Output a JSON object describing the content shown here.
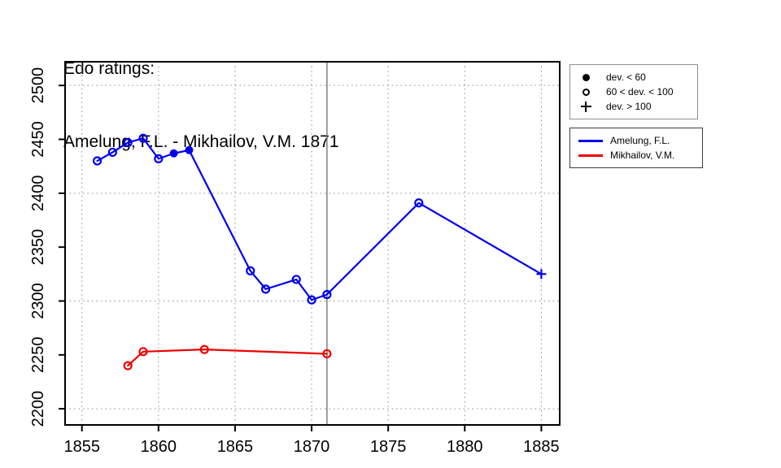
{
  "title": {
    "line1": "Edo ratings:",
    "line2": "Amelung, F.L. - Mikhailov, V.M. 1871"
  },
  "colors": {
    "amelung": "#0000ee",
    "mikhailov": "#ee0000",
    "grid": "#8c8c8c",
    "vline": "#7d7d7d",
    "axis": "#000000",
    "background": "#ffffff"
  },
  "marker_legend": {
    "items": [
      {
        "symbol": "filled-circle",
        "label": "dev. < 60"
      },
      {
        "symbol": "open-circle",
        "label": "60 < dev. < 100"
      },
      {
        "symbol": "plus",
        "label": "dev. > 100"
      }
    ]
  },
  "series_legend": {
    "items": [
      {
        "color": "#0000ee",
        "label": "Amelung, F.L."
      },
      {
        "color": "#ee0000",
        "label": "Mikhailov, V.M."
      }
    ]
  },
  "chart_data": {
    "type": "line",
    "title": "Edo ratings: Amelung, F.L. - Mikhailov, V.M. 1871",
    "xlabel": "",
    "ylabel": "",
    "xlim": [
      1853.9,
      1886.2
    ],
    "ylim": [
      2185,
      2522
    ],
    "x_ticks": [
      1855,
      1860,
      1865,
      1870,
      1875,
      1880,
      1885
    ],
    "y_ticks": [
      2200,
      2250,
      2300,
      2350,
      2400,
      2450,
      2500
    ],
    "grid_h_lines": [
      2200,
      2300,
      2400,
      2500
    ],
    "grid_v_lines": [
      1855,
      1860,
      1865,
      1870,
      1875,
      1880,
      1885
    ],
    "vline_x": 1871,
    "marker_meaning": {
      "filled": "dev. < 60",
      "open": "60 < dev. < 100",
      "plus": "dev. > 100"
    },
    "series": [
      {
        "name": "Amelung, F.L.",
        "color": "#0000ee",
        "points": [
          {
            "x": 1856,
            "y": 2430,
            "marker": "open"
          },
          {
            "x": 1857,
            "y": 2438,
            "marker": "open"
          },
          {
            "x": 1858,
            "y": 2447,
            "marker": "open"
          },
          {
            "x": 1859,
            "y": 2451,
            "marker": "open"
          },
          {
            "x": 1860,
            "y": 2432,
            "marker": "open"
          },
          {
            "x": 1861,
            "y": 2437,
            "marker": "filled"
          },
          {
            "x": 1862,
            "y": 2440,
            "marker": "filled"
          },
          {
            "x": 1866,
            "y": 2328,
            "marker": "open"
          },
          {
            "x": 1867,
            "y": 2311,
            "marker": "open"
          },
          {
            "x": 1869,
            "y": 2320,
            "marker": "open"
          },
          {
            "x": 1870,
            "y": 2301,
            "marker": "open"
          },
          {
            "x": 1871,
            "y": 2306,
            "marker": "open"
          },
          {
            "x": 1877,
            "y": 2391,
            "marker": "open"
          },
          {
            "x": 1885,
            "y": 2325,
            "marker": "plus"
          }
        ]
      },
      {
        "name": "Mikhailov, V.M.",
        "color": "#ee0000",
        "points": [
          {
            "x": 1858,
            "y": 2240,
            "marker": "open"
          },
          {
            "x": 1859,
            "y": 2253,
            "marker": "open"
          },
          {
            "x": 1863,
            "y": 2255,
            "marker": "open"
          },
          {
            "x": 1871,
            "y": 2251,
            "marker": "open"
          }
        ]
      }
    ]
  }
}
